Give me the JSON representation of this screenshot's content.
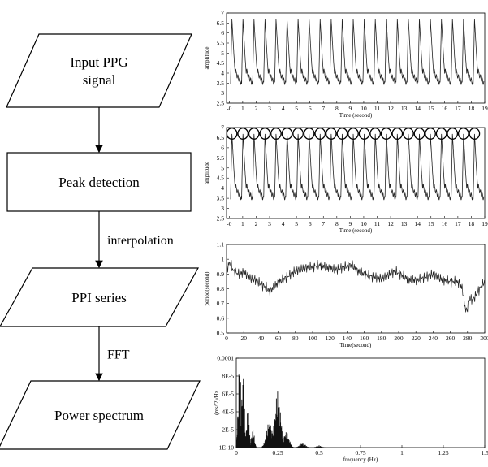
{
  "flowchart": {
    "nodes": [
      {
        "id": "input",
        "shape": "parallelogram",
        "lines": [
          "Input PPG",
          "signal"
        ]
      },
      {
        "id": "peak",
        "shape": "rectangle",
        "lines": [
          "Peak detection"
        ]
      },
      {
        "id": "ppi",
        "shape": "parallelogram",
        "lines": [
          "PPI series"
        ]
      },
      {
        "id": "spectrum",
        "shape": "parallelogram",
        "lines": [
          "Power spectrum"
        ]
      }
    ],
    "edges": [
      {
        "from": "input",
        "to": "peak",
        "label": ""
      },
      {
        "from": "peak",
        "to": "ppi",
        "label": "interpolation"
      },
      {
        "from": "ppi",
        "to": "spectrum",
        "label": "FFT"
      }
    ]
  },
  "chart_data": [
    {
      "type": "line",
      "title": "",
      "xlabel": "Time (second)",
      "ylabel": "amplitude",
      "xlim": [
        -0.2,
        19
      ],
      "ylim": [
        2.5,
        7
      ],
      "xticks": [
        "-0",
        "1",
        "2",
        "3",
        "4",
        "5",
        "6",
        "7",
        "8",
        "9",
        "10",
        "11",
        "12",
        "13",
        "14",
        "15",
        "16",
        "17",
        "18",
        "19"
      ],
      "yticks": [
        "2.5",
        "3",
        "3.5",
        "4",
        "4.5",
        "5",
        "5.5",
        "6",
        "6.5",
        "7"
      ],
      "signal": {
        "shape": "ppg",
        "period": 0.82,
        "baseline": 3.45,
        "peak": 6.7
      },
      "peak_markers": false
    },
    {
      "type": "line",
      "title": "",
      "xlabel": "Time (second)",
      "ylabel": "amplitude",
      "xlim": [
        -0.2,
        19
      ],
      "ylim": [
        2.5,
        7
      ],
      "xticks": [
        "-0",
        "1",
        "2",
        "3",
        "4",
        "5",
        "6",
        "7",
        "8",
        "9",
        "10",
        "11",
        "12",
        "13",
        "14",
        "15",
        "16",
        "17",
        "18",
        "19"
      ],
      "yticks": [
        "2.5",
        "3",
        "3.5",
        "4",
        "4.5",
        "5",
        "5.5",
        "6",
        "6.5",
        "7"
      ],
      "signal": {
        "shape": "ppg",
        "period": 0.82,
        "baseline": 3.45,
        "peak": 6.7
      },
      "peak_markers": true
    },
    {
      "type": "line",
      "title": "",
      "xlabel": "Time(second)",
      "ylabel": "period(second)",
      "xlim": [
        0,
        300
      ],
      "ylim": [
        0.5,
        1.1
      ],
      "xticks": [
        "0",
        "20",
        "40",
        "60",
        "80",
        "100",
        "120",
        "140",
        "160",
        "180",
        "200",
        "220",
        "240",
        "260",
        "280",
        "300"
      ],
      "yticks": [
        "0.5",
        "0.6",
        "0.7",
        "0.8",
        "0.9",
        "1",
        "1.1"
      ],
      "series_points": [
        [
          0,
          0.93
        ],
        [
          4,
          0.98
        ],
        [
          8,
          0.92
        ],
        [
          14,
          0.9
        ],
        [
          20,
          0.91
        ],
        [
          28,
          0.87
        ],
        [
          34,
          0.86
        ],
        [
          40,
          0.83
        ],
        [
          46,
          0.81
        ],
        [
          50,
          0.78
        ],
        [
          56,
          0.82
        ],
        [
          62,
          0.85
        ],
        [
          70,
          0.88
        ],
        [
          80,
          0.92
        ],
        [
          90,
          0.94
        ],
        [
          100,
          0.95
        ],
        [
          110,
          0.96
        ],
        [
          118,
          0.94
        ],
        [
          128,
          0.93
        ],
        [
          138,
          0.95
        ],
        [
          146,
          0.96
        ],
        [
          152,
          0.92
        ],
        [
          160,
          0.9
        ],
        [
          170,
          0.88
        ],
        [
          180,
          0.87
        ],
        [
          190,
          0.9
        ],
        [
          196,
          0.92
        ],
        [
          204,
          0.89
        ],
        [
          212,
          0.86
        ],
        [
          222,
          0.86
        ],
        [
          232,
          0.88
        ],
        [
          240,
          0.9
        ],
        [
          248,
          0.87
        ],
        [
          256,
          0.85
        ],
        [
          264,
          0.85
        ],
        [
          270,
          0.84
        ],
        [
          274,
          0.8
        ],
        [
          277,
          0.68
        ],
        [
          279,
          0.64
        ],
        [
          282,
          0.74
        ],
        [
          286,
          0.72
        ],
        [
          290,
          0.76
        ],
        [
          294,
          0.8
        ],
        [
          300,
          0.85
        ]
      ]
    },
    {
      "type": "bar",
      "title": "",
      "xlabel": "frequency (Hz)",
      "ylabel": "(ms^2)/Hz",
      "xlim": [
        0,
        1.5
      ],
      "ylim": [
        1e-10,
        0.0001
      ],
      "xticks": [
        "0",
        "0.25",
        "0.5",
        "0.75",
        "1",
        "1.25",
        "1.5"
      ],
      "yticks": [
        "1E-10",
        "2E-5",
        "4E-5",
        "6E-5",
        "8E-5",
        "0.0001"
      ],
      "peaks": [
        {
          "frequency": 0.02,
          "power": 0.0001
        },
        {
          "frequency": 0.04,
          "power": 8.8e-05
        },
        {
          "frequency": 0.07,
          "power": 4.5e-05
        },
        {
          "frequency": 0.1,
          "power": 2.2e-05
        },
        {
          "frequency": 0.2,
          "power": 3e-05
        },
        {
          "frequency": 0.25,
          "power": 6.4e-05
        },
        {
          "frequency": 0.3,
          "power": 1.8e-05
        },
        {
          "frequency": 0.4,
          "power": 5e-06
        },
        {
          "frequency": 0.5,
          "power": 2e-06
        }
      ]
    }
  ]
}
